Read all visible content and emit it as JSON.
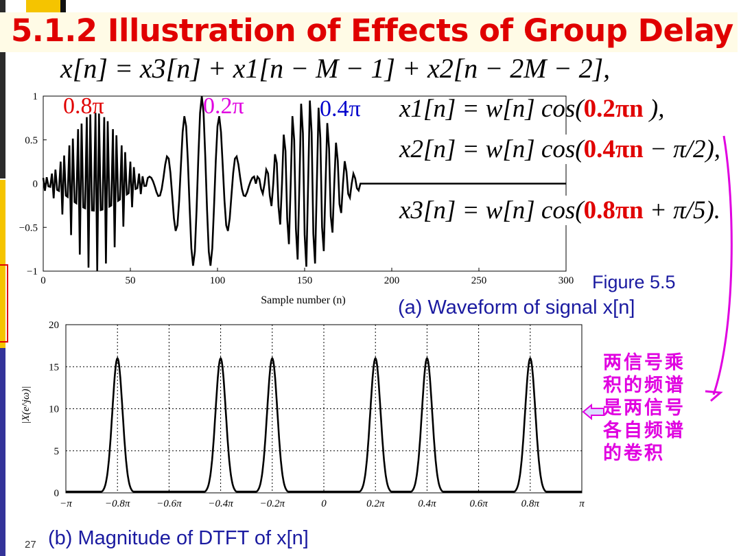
{
  "title": "5.1.2  Illustration of Effects of Group Delay",
  "equation_main": "x[n] = x3[n] + x1[n − M − 1] + x2[n − 2M − 2],",
  "equations": [
    {
      "lhs": "x1[n] = w[n] cos(",
      "arg": "0.2πn",
      "rhs": " ),"
    },
    {
      "lhs": "x2[n] = w[n] cos(",
      "arg": "0.4πn",
      "rhs": " − π/2),"
    },
    {
      "lhs": "x3[n] = w[n] cos(",
      "arg": "0.8πn",
      "rhs": " + π/5)."
    }
  ],
  "burst_labels": [
    "0.8π",
    "0.2π",
    "0.4π"
  ],
  "figure_caption": "Figure 5.5",
  "subcaption_a": "(a) Waveform of signal x[n]",
  "subcaption_b": "(b) Magnitude of DTFT of x[n]",
  "page_number": "27",
  "note_lines": [
    "两信号乘",
    "积的频谱",
    "是两信号",
    "各自频谱",
    "的卷积"
  ],
  "colors": {
    "title": "#e00000",
    "caption": "#1a1aa0",
    "note": "#e000e0",
    "label_08": "#e00000",
    "label_02": "#e000e0",
    "label_04": "#0000cc"
  },
  "chart_data": [
    {
      "type": "line",
      "xlabel": "Sample number (n)",
      "ylabel": "",
      "xlim": [
        0,
        300
      ],
      "ylim": [
        -1,
        1
      ],
      "x_ticks": [
        "0",
        "50",
        "100",
        "150",
        "200",
        "250",
        "300"
      ],
      "y_ticks": [
        "1",
        "0.5",
        "0",
        "−0.5",
        "−1"
      ],
      "series": [
        {
          "segment": [
            0,
            60
          ],
          "frequency": "0.8π"
        },
        {
          "segment": [
            61,
            121
          ],
          "frequency": "0.2π"
        },
        {
          "segment": [
            122,
            182
          ],
          "frequency": "0.4π"
        }
      ],
      "grid": false
    },
    {
      "type": "line",
      "xlabel": "",
      "ylabel": "|X(e^jω)|",
      "xlim": [
        -3.1416,
        3.1416
      ],
      "ylim": [
        0,
        20
      ],
      "x_ticks": [
        "−π",
        "−0.8π",
        "−0.6π",
        "−0.4π",
        "−0.2π",
        "0",
        "0.2π",
        "0.4π",
        "0.6π",
        "0.8π",
        "π"
      ],
      "y_ticks": [
        "20",
        "15",
        "10",
        "5",
        "0"
      ],
      "peaks_pi_units": [
        -0.8,
        -0.4,
        -0.2,
        0.2,
        0.4,
        0.8
      ],
      "peak_value": 16,
      "grid": true
    }
  ]
}
